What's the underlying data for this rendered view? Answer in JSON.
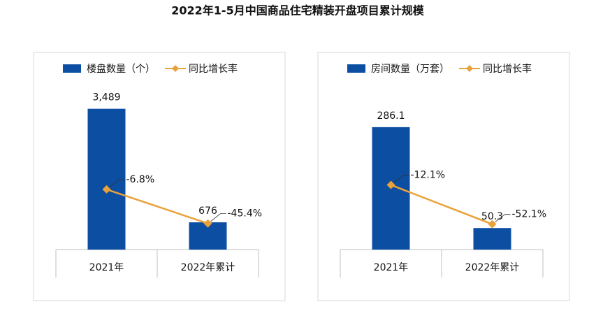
{
  "title": "2022年1-5月中国商品住宅精装开盘项目累计规模",
  "chart_data": [
    {
      "type": "bar-line",
      "categories": [
        "2021年",
        "2022年累计"
      ],
      "ylim": [
        0,
        3500
      ],
      "y2lim": [
        -75,
        85
      ],
      "series": [
        {
          "name": "楼盘数量（个）",
          "type": "bar",
          "color": "#0b4ea2",
          "values": [
            3489,
            676
          ],
          "value_labels": [
            "3,489",
            "676"
          ]
        },
        {
          "name": "同比增长率",
          "type": "line",
          "axis": "y2",
          "color": "#e9a23b",
          "values": [
            -6.8,
            -45.4
          ],
          "value_labels": [
            "-6.8%",
            "-45.4%"
          ]
        }
      ]
    },
    {
      "type": "bar-line",
      "categories": [
        "2021年",
        "2022年累计"
      ],
      "ylim": [
        0,
        330
      ],
      "y2lim": [
        -78,
        66
      ],
      "series": [
        {
          "name": "房间数量（万套）",
          "type": "bar",
          "color": "#0b4ea2",
          "values": [
            286.1,
            50.3
          ],
          "value_labels": [
            "286.1",
            "50.3"
          ]
        },
        {
          "name": "同比增长率",
          "type": "line",
          "axis": "y2",
          "color": "#e9a23b",
          "values": [
            -12.1,
            -52.1
          ],
          "value_labels": [
            "-12.1%",
            "-52.1%"
          ]
        }
      ]
    }
  ]
}
